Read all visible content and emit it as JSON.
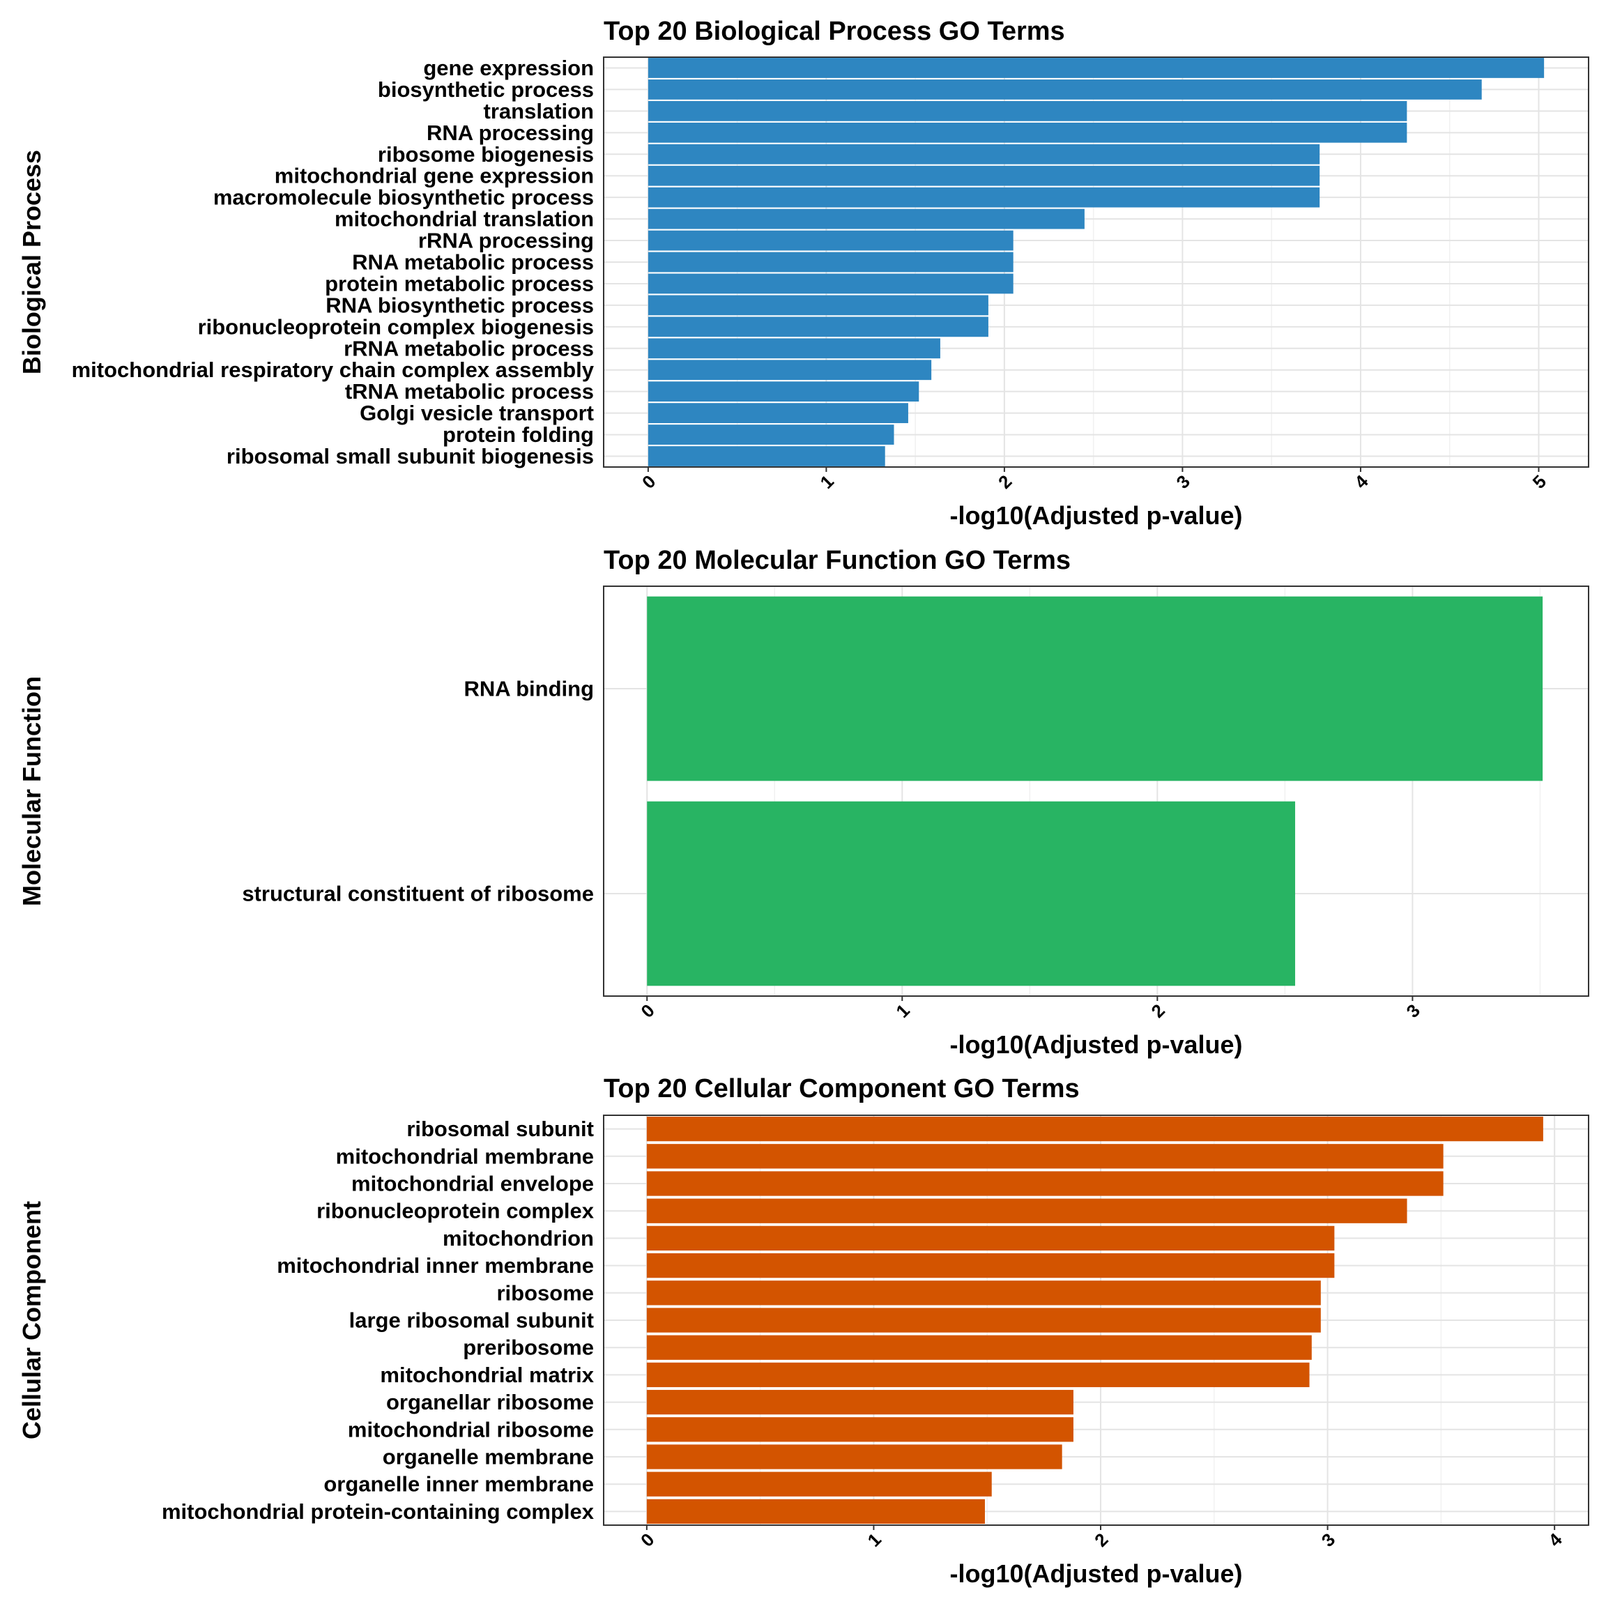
{
  "chart_data": [
    {
      "type": "bar",
      "orientation": "horizontal",
      "title": "Top 20 Biological Process GO Terms",
      "ylabel": "Biological Process",
      "xlabel": "-log10(Adjusted p-value)",
      "xlim": [
        -0.25,
        5.28
      ],
      "xticks": [
        "0",
        "1",
        "2",
        "3",
        "4",
        "5"
      ],
      "color": "#2e86c1",
      "grid": true,
      "categories": [
        "gene expression",
        "biosynthetic process",
        "translation",
        "RNA processing",
        "ribosome biogenesis",
        "mitochondrial gene expression",
        "macromolecule biosynthetic process",
        "mitochondrial translation",
        "rRNA processing",
        "RNA metabolic process",
        "protein metabolic process",
        "RNA biosynthetic process",
        "ribonucleoprotein complex biogenesis",
        "rRNA metabolic process",
        "mitochondrial respiratory chain complex assembly",
        "tRNA metabolic process",
        "Golgi vesicle transport",
        "protein folding",
        "ribosomal small subunit biogenesis"
      ],
      "values": [
        5.03,
        4.68,
        4.26,
        4.26,
        3.77,
        3.77,
        3.77,
        2.45,
        2.05,
        2.05,
        2.05,
        1.91,
        1.91,
        1.64,
        1.59,
        1.52,
        1.46,
        1.38,
        1.33
      ]
    },
    {
      "type": "bar",
      "orientation": "horizontal",
      "title": "Top 20 Molecular Function GO Terms",
      "ylabel": "Molecular Function",
      "xlabel": "-log10(Adjusted p-value)",
      "xlim": [
        -0.17,
        3.69
      ],
      "xticks": [
        "0",
        "1",
        "2",
        "3"
      ],
      "color": "#28b463",
      "grid": true,
      "categories": [
        "RNA binding",
        "structural constituent of ribosome"
      ],
      "values": [
        3.51,
        2.54
      ]
    },
    {
      "type": "bar",
      "orientation": "horizontal",
      "title": "Top 20 Cellular Component GO Terms",
      "ylabel": "Cellular Component",
      "xlabel": "-log10(Adjusted p-value)",
      "xlim": [
        -0.19,
        4.15
      ],
      "xticks": [
        "0",
        "1",
        "2",
        "3",
        "4"
      ],
      "color": "#d35400",
      "grid": true,
      "categories": [
        "ribosomal subunit",
        "mitochondrial membrane",
        "mitochondrial envelope",
        "ribonucleoprotein complex",
        "mitochondrion",
        "mitochondrial inner membrane",
        "ribosome",
        "large ribosomal subunit",
        "preribosome",
        "mitochondrial matrix",
        "organellar ribosome",
        "mitochondrial ribosome",
        "organelle membrane",
        "organelle inner membrane",
        "mitochondrial protein-containing complex"
      ],
      "values": [
        3.95,
        3.51,
        3.51,
        3.35,
        3.03,
        3.03,
        2.97,
        2.97,
        2.93,
        2.92,
        1.88,
        1.88,
        1.83,
        1.52,
        1.49
      ]
    }
  ]
}
